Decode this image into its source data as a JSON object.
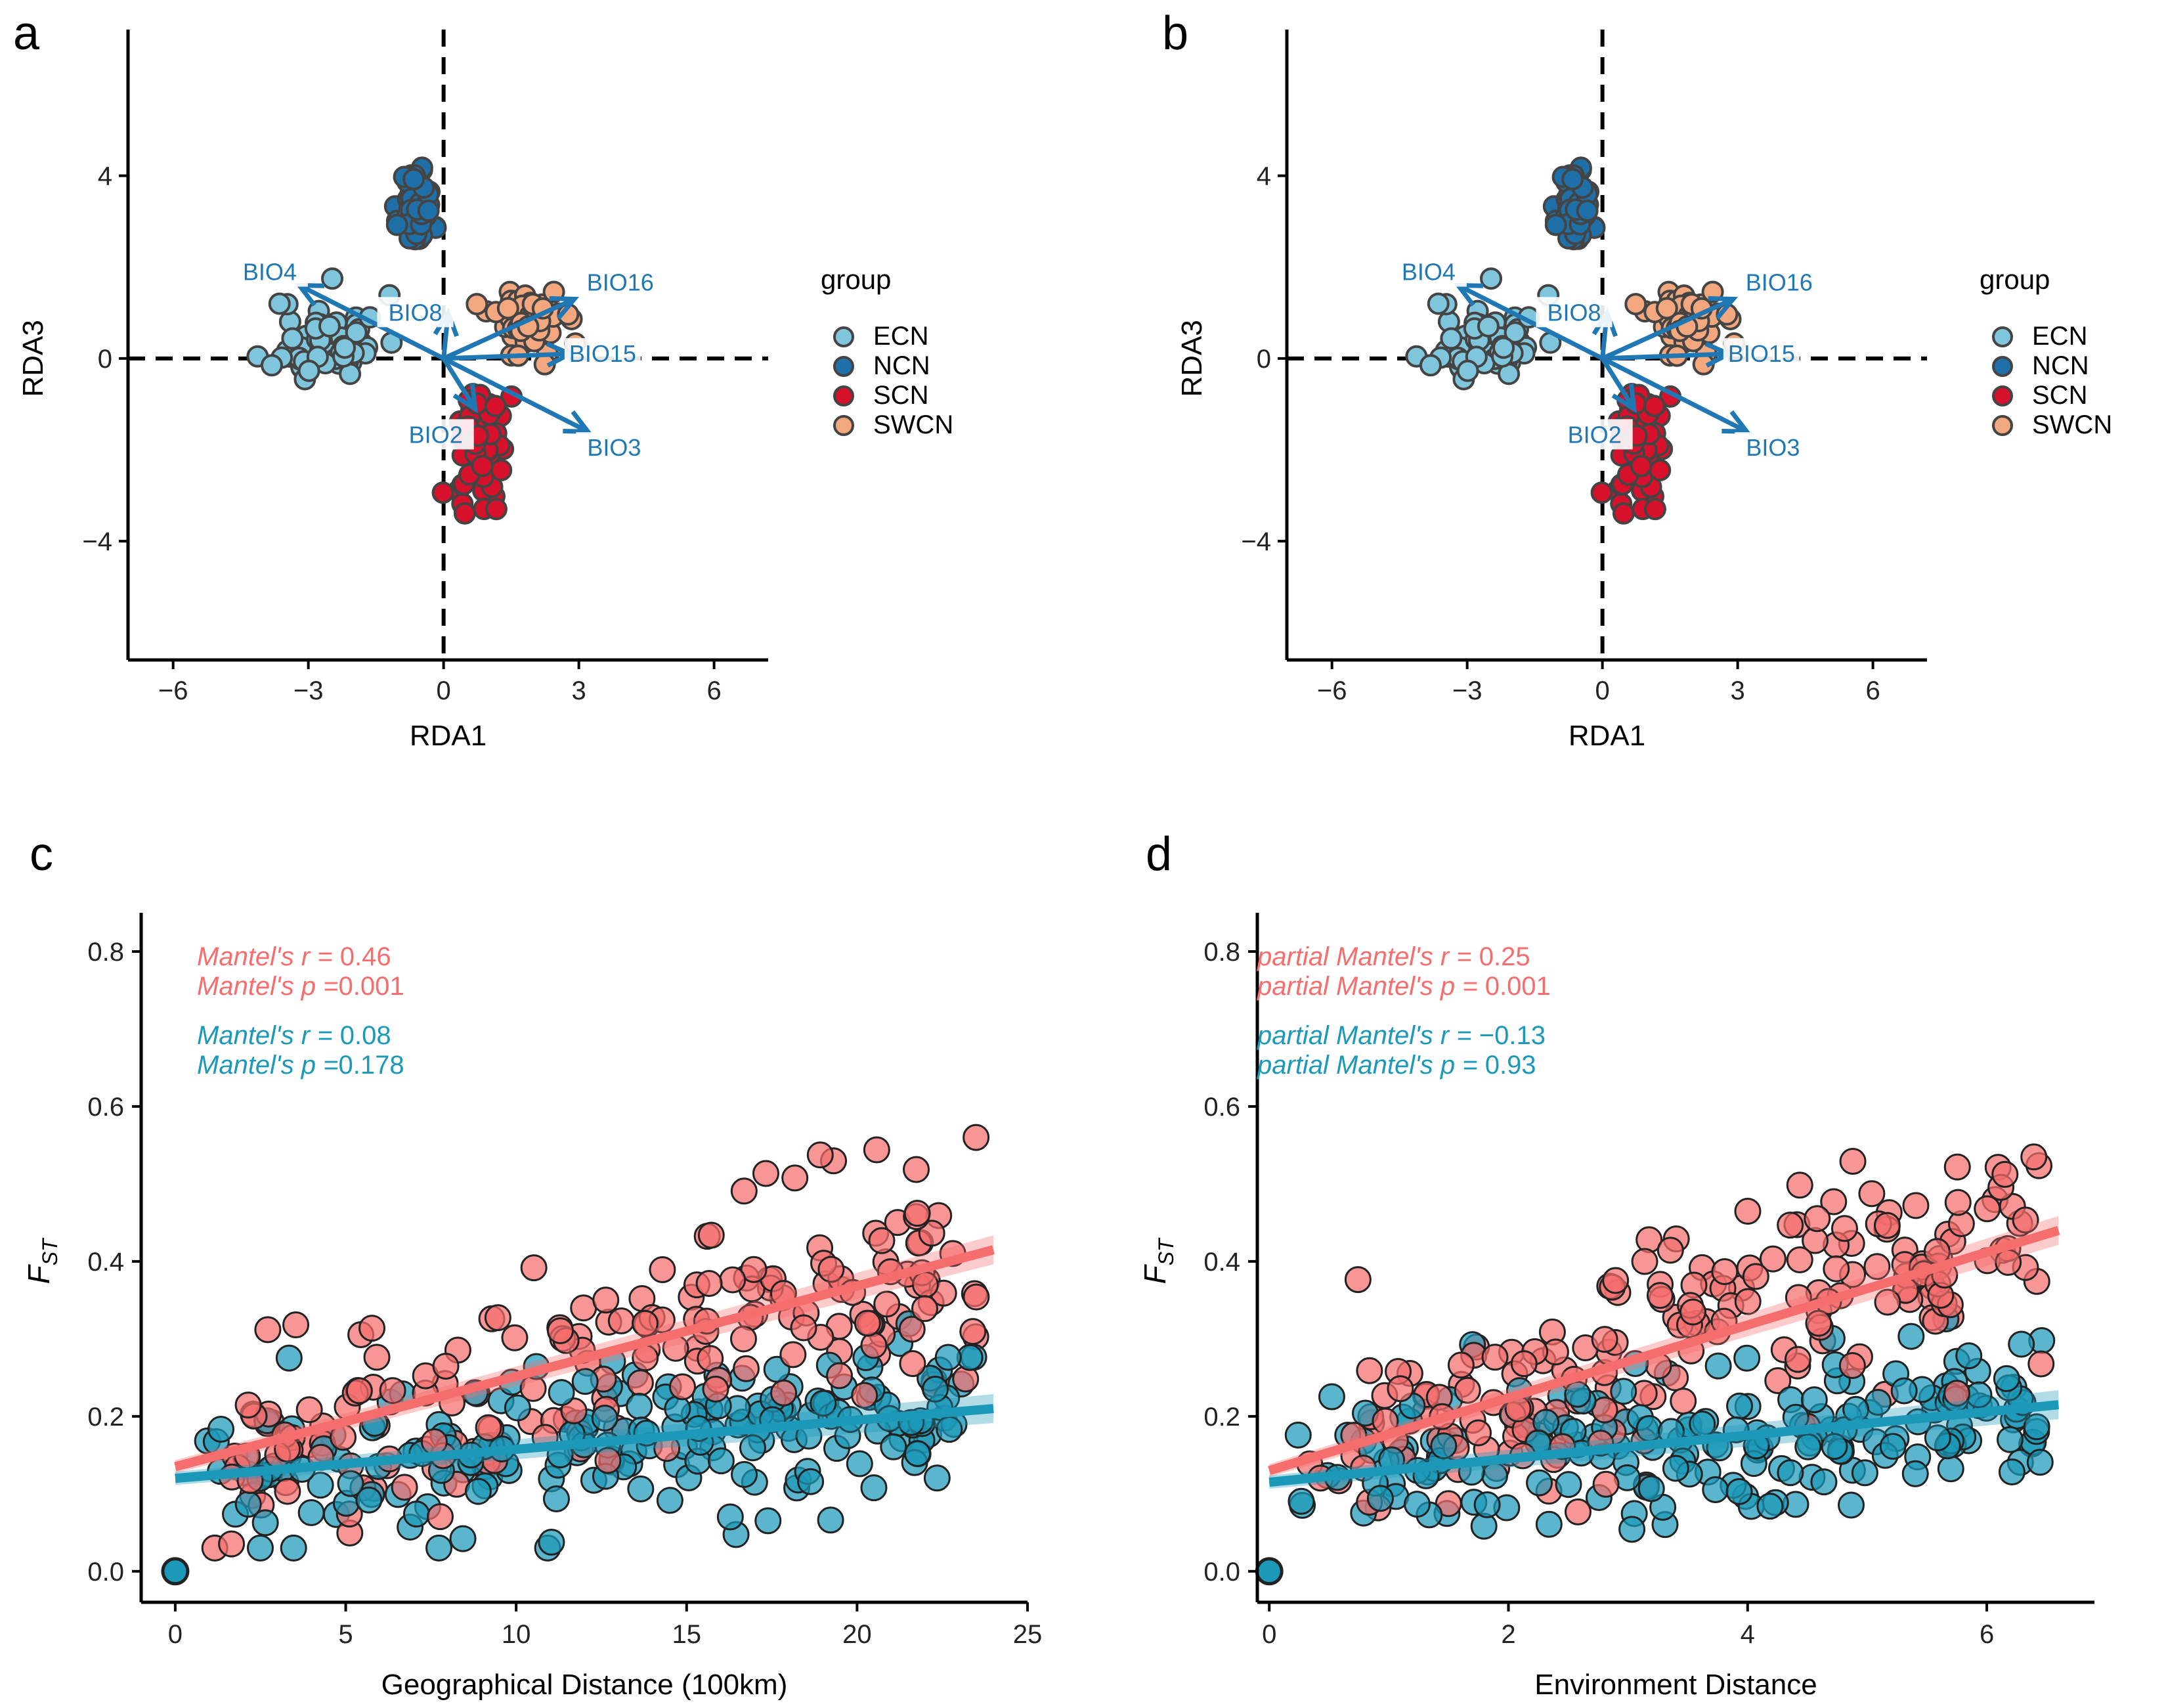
{
  "panels": [
    {
      "letter": "a"
    },
    {
      "letter": "b"
    },
    {
      "letter": "c"
    },
    {
      "letter": "d"
    }
  ],
  "colors": {
    "ECN": "#7fc6dc",
    "NCN": "#1f6fa8",
    "SCN": "#d7112b",
    "SWCN": "#f3a77f",
    "arrow": "#1f77b4",
    "red": "#f56d6d",
    "blue": "#1c98b9",
    "point_outline": "#333333"
  },
  "chart_data": [
    {
      "type": "scatter",
      "panel": "a",
      "title": "",
      "xlabel": "RDA1",
      "ylabel": "RDA3",
      "xlim": [
        -7,
        7.2
      ],
      "ylim": [
        -6.6,
        7.2
      ],
      "xticks": [
        -6,
        -3,
        0,
        3,
        6
      ],
      "yticks": [
        4,
        0,
        -4
      ],
      "legend": {
        "title": "group",
        "entries": [
          "ECN",
          "NCN",
          "SCN",
          "SWCN"
        ],
        "placement": "right"
      },
      "reference_lines": {
        "x": 0,
        "y": 0,
        "style": "dashed"
      },
      "arrows": [
        {
          "name": "BIO4",
          "x": -3.2,
          "y": 1.6
        },
        {
          "name": "BIO8",
          "x": 0.1,
          "y": 1.0
        },
        {
          "name": "BIO16",
          "x": 2.9,
          "y": 1.3
        },
        {
          "name": "BIO15",
          "x": 2.8,
          "y": 0.1
        },
        {
          "name": "BIO2",
          "x": 0.7,
          "y": -1.1
        },
        {
          "name": "BIO3",
          "x": 3.2,
          "y": -1.6
        }
      ],
      "groups": [
        {
          "name": "ECN",
          "center": [
            -2.6,
            0.4
          ],
          "spread": [
            1.1,
            0.9
          ],
          "n": 60
        },
        {
          "name": "NCN",
          "center": [
            -0.6,
            3.3
          ],
          "spread": [
            0.35,
            0.8
          ],
          "n": 55
        },
        {
          "name": "SCN",
          "center": [
            0.8,
            -1.9
          ],
          "spread": [
            0.55,
            1.1
          ],
          "n": 75
        },
        {
          "name": "SWCN",
          "center": [
            1.9,
            0.8
          ],
          "spread": [
            0.75,
            0.8
          ],
          "n": 45
        }
      ]
    },
    {
      "type": "scatter",
      "panel": "b",
      "title": "",
      "xlabel": "RDA1",
      "ylabel": "RDA3",
      "xlim": [
        -7,
        7.2
      ],
      "ylim": [
        -6.6,
        7.2
      ],
      "xticks": [
        -6,
        -3,
        0,
        3,
        6
      ],
      "yticks": [
        4,
        0,
        -4
      ],
      "legend": {
        "title": "group",
        "entries": [
          "ECN",
          "NCN",
          "SCN",
          "SWCN"
        ],
        "placement": "right"
      },
      "reference_lines": {
        "x": 0,
        "y": 0,
        "style": "dashed"
      },
      "arrows": [
        {
          "name": "BIO4",
          "x": -3.2,
          "y": 1.6
        },
        {
          "name": "BIO8",
          "x": 0.1,
          "y": 1.0
        },
        {
          "name": "BIO16",
          "x": 2.9,
          "y": 1.3
        },
        {
          "name": "BIO15",
          "x": 2.8,
          "y": 0.1
        },
        {
          "name": "BIO2",
          "x": 0.7,
          "y": -1.1
        },
        {
          "name": "BIO3",
          "x": 3.2,
          "y": -1.6
        }
      ],
      "groups": [
        {
          "name": "ECN",
          "center": [
            -2.6,
            0.4
          ],
          "spread": [
            1.1,
            0.9
          ],
          "n": 60
        },
        {
          "name": "NCN",
          "center": [
            -0.6,
            3.3
          ],
          "spread": [
            0.35,
            0.8
          ],
          "n": 55
        },
        {
          "name": "SCN",
          "center": [
            0.8,
            -1.9
          ],
          "spread": [
            0.55,
            1.1
          ],
          "n": 75
        },
        {
          "name": "SWCN",
          "center": [
            1.9,
            0.8
          ],
          "spread": [
            0.75,
            0.8
          ],
          "n": 45
        }
      ]
    },
    {
      "type": "scatter",
      "panel": "c",
      "title": "",
      "xlabel": "Geographical Distance (100km)",
      "ylabel_main": "F",
      "ylabel_sub": "ST",
      "xlim": [
        -1,
        25
      ],
      "ylim": [
        -0.04,
        0.85
      ],
      "xticks": [
        0,
        5,
        10,
        15,
        20,
        25
      ],
      "yticks": [
        0.0,
        0.2,
        0.4,
        0.6,
        0.8
      ],
      "series": [
        {
          "name": "red",
          "fit": {
            "x": [
              0,
              24
            ],
            "y": [
              0.135,
              0.415
            ]
          },
          "noise": 0.07,
          "n": 200
        },
        {
          "name": "blue",
          "fit": {
            "x": [
              0,
              24
            ],
            "y": [
              0.12,
              0.21
            ]
          },
          "noise": 0.05,
          "n": 200
        }
      ],
      "annotations": [
        {
          "series": "red",
          "label": "Mantel's r = ",
          "value": "0.46"
        },
        {
          "series": "red",
          "label": "Mantel's p =",
          "value": "0.001"
        },
        {
          "series": "blue",
          "label": "Mantel's r = ",
          "value": "0.08"
        },
        {
          "series": "blue",
          "label": "Mantel's p =",
          "value": "0.178"
        }
      ]
    },
    {
      "type": "scatter",
      "panel": "d",
      "title": "",
      "xlabel": "Environment Distance",
      "ylabel_main": "F",
      "ylabel_sub": "ST",
      "xlim": [
        -0.1,
        6.9
      ],
      "ylim": [
        -0.04,
        0.85
      ],
      "xticks": [
        0,
        2,
        4,
        6
      ],
      "yticks": [
        0.0,
        0.2,
        0.4,
        0.6,
        0.8
      ],
      "series": [
        {
          "name": "red",
          "fit": {
            "x": [
              0,
              6.6
            ],
            "y": [
              0.13,
              0.44
            ]
          },
          "noise": 0.07,
          "n": 200
        },
        {
          "name": "blue",
          "fit": {
            "x": [
              0,
              6.6
            ],
            "y": [
              0.115,
              0.215
            ]
          },
          "noise": 0.05,
          "n": 200
        }
      ],
      "annotations": [
        {
          "series": "red",
          "label": "partial Mantel's r = ",
          "value": "0.25"
        },
        {
          "series": "red",
          "label": "partial Mantel's p = ",
          "value": "0.001"
        },
        {
          "series": "blue",
          "label": "partial Mantel's r = ",
          "value": "−0.13"
        },
        {
          "series": "blue",
          "label": "partial Mantel's p = ",
          "value": "0.93"
        }
      ]
    }
  ]
}
